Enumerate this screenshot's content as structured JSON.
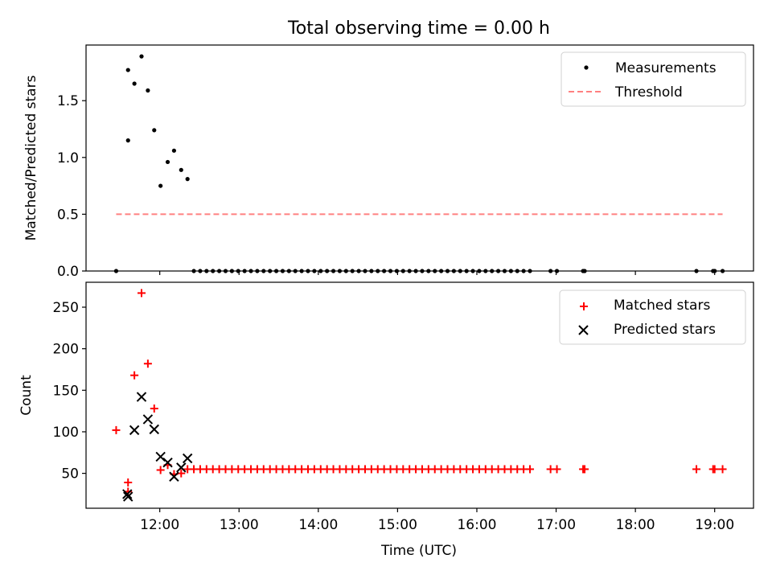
{
  "figure": {
    "title": "Total observing time = 0.00 h"
  },
  "chart_data": [
    {
      "type": "scatter",
      "panel": "top",
      "ylabel": "Matched/Predicted stars",
      "xlabel": "",
      "xlim": [
        11.07,
        19.49
      ],
      "ylim": [
        0,
        1.99
      ],
      "yticks": [
        0.0,
        0.5,
        1.0,
        1.5
      ],
      "ytick_labels": [
        "0.0",
        "0.5",
        "1.0",
        "1.5"
      ],
      "grid": false,
      "legend_position": "top-right",
      "series": [
        {
          "name": "Measurements",
          "style": "dot",
          "color": "#000000",
          "x": [
            11.45,
            11.6,
            11.6,
            11.68,
            11.77,
            11.85,
            11.93,
            12.01,
            12.1,
            12.18,
            12.27,
            12.35,
            12.43,
            12.51,
            12.59,
            12.67,
            12.75,
            12.83,
            12.91,
            12.99,
            13.07,
            13.15,
            13.23,
            13.31,
            13.39,
            13.47,
            13.55,
            13.63,
            13.71,
            13.79,
            13.87,
            13.95,
            14.03,
            14.11,
            14.19,
            14.27,
            14.35,
            14.43,
            14.51,
            14.59,
            14.67,
            14.75,
            14.83,
            14.91,
            14.99,
            15.07,
            15.15,
            15.23,
            15.31,
            15.39,
            15.47,
            15.55,
            15.63,
            15.71,
            15.79,
            15.87,
            15.95,
            16.03,
            16.11,
            16.19,
            16.27,
            16.35,
            16.43,
            16.51,
            16.59,
            16.67,
            16.93,
            17.01,
            17.34,
            17.36,
            18.77,
            18.98,
            19.0,
            19.1
          ],
          "y": [
            0.0,
            1.15,
            1.77,
            1.65,
            1.89,
            1.59,
            1.24,
            0.75,
            0.96,
            1.06,
            0.89,
            0.81,
            0.0,
            0.0,
            0.0,
            0.0,
            0.0,
            0.0,
            0.0,
            0.0,
            0.0,
            0.0,
            0.0,
            0.0,
            0.0,
            0.0,
            0.0,
            0.0,
            0.0,
            0.0,
            0.0,
            0.0,
            0.0,
            0.0,
            0.0,
            0.0,
            0.0,
            0.0,
            0.0,
            0.0,
            0.0,
            0.0,
            0.0,
            0.0,
            0.0,
            0.0,
            0.0,
            0.0,
            0.0,
            0.0,
            0.0,
            0.0,
            0.0,
            0.0,
            0.0,
            0.0,
            0.0,
            0.0,
            0.0,
            0.0,
            0.0,
            0.0,
            0.0,
            0.0,
            0.0,
            0.0,
            0.0,
            0.0,
            0.0,
            0.0,
            0.0,
            0.0,
            0.0,
            0.0
          ]
        },
        {
          "name": "Threshold",
          "style": "dashed-line",
          "color": "#ff8080",
          "x": [
            11.45,
            19.1
          ],
          "y": [
            0.5,
            0.5
          ]
        }
      ]
    },
    {
      "type": "scatter",
      "panel": "bottom",
      "ylabel": "Count",
      "xlabel": "Time (UTC)",
      "xlim": [
        11.07,
        19.49
      ],
      "ylim": [
        8,
        280
      ],
      "yticks": [
        50,
        100,
        150,
        200,
        250
      ],
      "ytick_labels": [
        "50",
        "100",
        "150",
        "200",
        "250"
      ],
      "xticks": [
        12,
        13,
        14,
        15,
        16,
        17,
        18,
        19
      ],
      "xtick_labels": [
        "12:00",
        "13:00",
        "14:00",
        "15:00",
        "16:00",
        "17:00",
        "18:00",
        "19:00"
      ],
      "grid": false,
      "legend_position": "top-right",
      "series": [
        {
          "name": "Matched stars",
          "style": "plus",
          "color": "#ff0000",
          "x": [
            11.45,
            11.6,
            11.6,
            11.68,
            11.77,
            11.85,
            11.93,
            12.01,
            12.1,
            12.18,
            12.27,
            12.35,
            12.43,
            12.51,
            12.59,
            12.67,
            12.75,
            12.83,
            12.91,
            12.99,
            13.07,
            13.15,
            13.23,
            13.31,
            13.39,
            13.47,
            13.55,
            13.63,
            13.71,
            13.79,
            13.87,
            13.95,
            14.03,
            14.11,
            14.19,
            14.27,
            14.35,
            14.43,
            14.51,
            14.59,
            14.67,
            14.75,
            14.83,
            14.91,
            14.99,
            15.07,
            15.15,
            15.23,
            15.31,
            15.39,
            15.47,
            15.55,
            15.63,
            15.71,
            15.79,
            15.87,
            15.95,
            16.03,
            16.11,
            16.19,
            16.27,
            16.35,
            16.43,
            16.51,
            16.59,
            16.67,
            16.93,
            17.01,
            17.34,
            17.36,
            18.77,
            18.98,
            19.0,
            19.1
          ],
          "y": [
            102,
            28,
            39,
            168,
            267,
            182,
            128,
            54,
            60,
            49,
            50,
            55,
            55,
            55,
            55,
            55,
            55,
            55,
            55,
            55,
            55,
            55,
            55,
            55,
            55,
            55,
            55,
            55,
            55,
            55,
            55,
            55,
            55,
            55,
            55,
            55,
            55,
            55,
            55,
            55,
            55,
            55,
            55,
            55,
            55,
            55,
            55,
            55,
            55,
            55,
            55,
            55,
            55,
            55,
            55,
            55,
            55,
            55,
            55,
            55,
            55,
            55,
            55,
            55,
            55,
            55,
            55,
            55,
            55,
            55,
            55,
            55,
            55,
            55
          ]
        },
        {
          "name": "Predicted stars",
          "style": "x",
          "color": "#000000",
          "x": [
            11.59,
            11.6,
            11.68,
            11.77,
            11.85,
            11.93,
            12.01,
            12.1,
            12.18,
            12.27,
            12.35
          ],
          "y": [
            25,
            22,
            102,
            142,
            115,
            103,
            70,
            63,
            46,
            57,
            68
          ]
        }
      ]
    }
  ]
}
